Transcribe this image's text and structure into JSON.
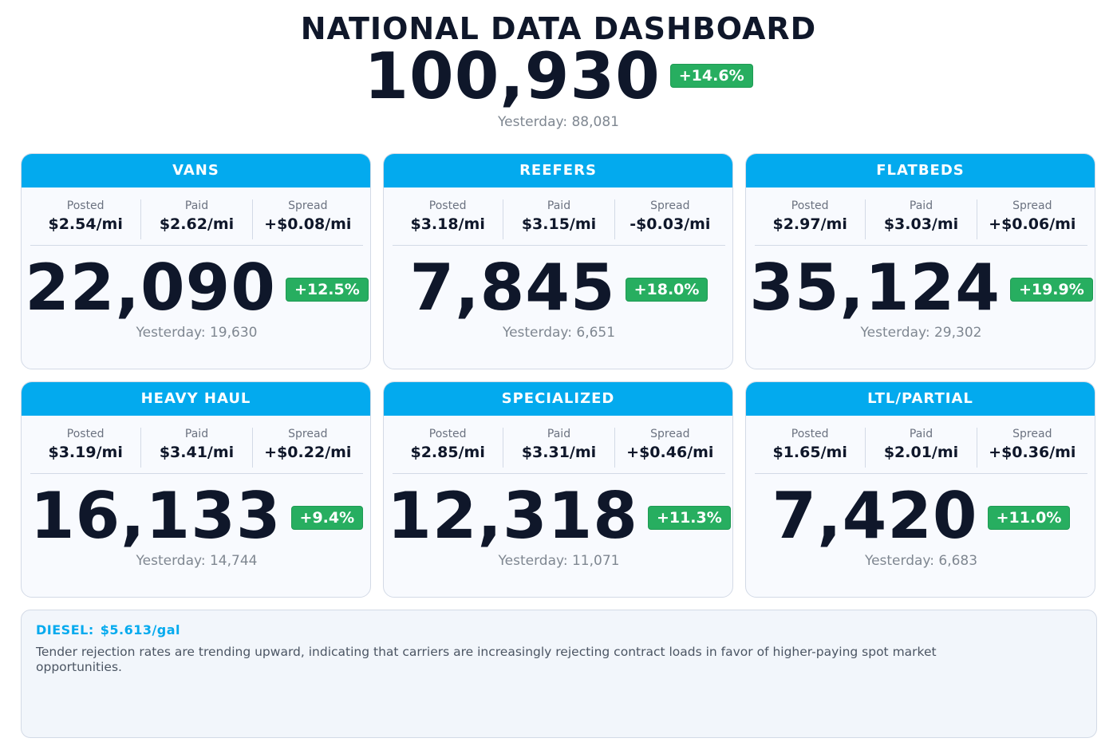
{
  "header": {
    "title": "NATIONAL DATA DASHBOARD",
    "total": "100,930",
    "change": "+14.6%",
    "yesterday": "Yesterday: 88,081"
  },
  "labels": {
    "posted": "Posted",
    "paid": "Paid",
    "spread": "Spread"
  },
  "cards": [
    {
      "name": "VANS",
      "posted": "$2.54/mi",
      "paid": "$2.62/mi",
      "spread": "+$0.08/mi",
      "value": "22,090",
      "change": "+12.5%",
      "yesterday": "Yesterday: 19,630"
    },
    {
      "name": "REEFERS",
      "posted": "$3.18/mi",
      "paid": "$3.15/mi",
      "spread": "-$0.03/mi",
      "value": "7,845",
      "change": "+18.0%",
      "yesterday": "Yesterday: 6,651"
    },
    {
      "name": "FLATBEDS",
      "posted": "$2.97/mi",
      "paid": "$3.03/mi",
      "spread": "+$0.06/mi",
      "value": "35,124",
      "change": "+19.9%",
      "yesterday": "Yesterday: 29,302"
    },
    {
      "name": "HEAVY HAUL",
      "posted": "$3.19/mi",
      "paid": "$3.41/mi",
      "spread": "+$0.22/mi",
      "value": "16,133",
      "change": "+9.4%",
      "yesterday": "Yesterday: 14,744"
    },
    {
      "name": "SPECIALIZED",
      "posted": "$2.85/mi",
      "paid": "$3.31/mi",
      "spread": "+$0.46/mi",
      "value": "12,318",
      "change": "+11.3%",
      "yesterday": "Yesterday: 11,071"
    },
    {
      "name": "LTL/PARTIAL",
      "posted": "$1.65/mi",
      "paid": "$2.01/mi",
      "spread": "+$0.36/mi",
      "value": "7,420",
      "change": "+11.0%",
      "yesterday": "Yesterday: 6,683"
    }
  ],
  "note": {
    "diesel_label": "DIESEL:",
    "diesel_value": "$5.613/gal",
    "text": "Tender rejection rates are trending upward, indicating that carriers are increasingly rejecting contract loads in favor of higher-paying spot market opportunities."
  },
  "colors": {
    "accent": "#03aaee",
    "positive": "#27ae60",
    "text": "#0f172a",
    "muted": "#7f8791"
  }
}
